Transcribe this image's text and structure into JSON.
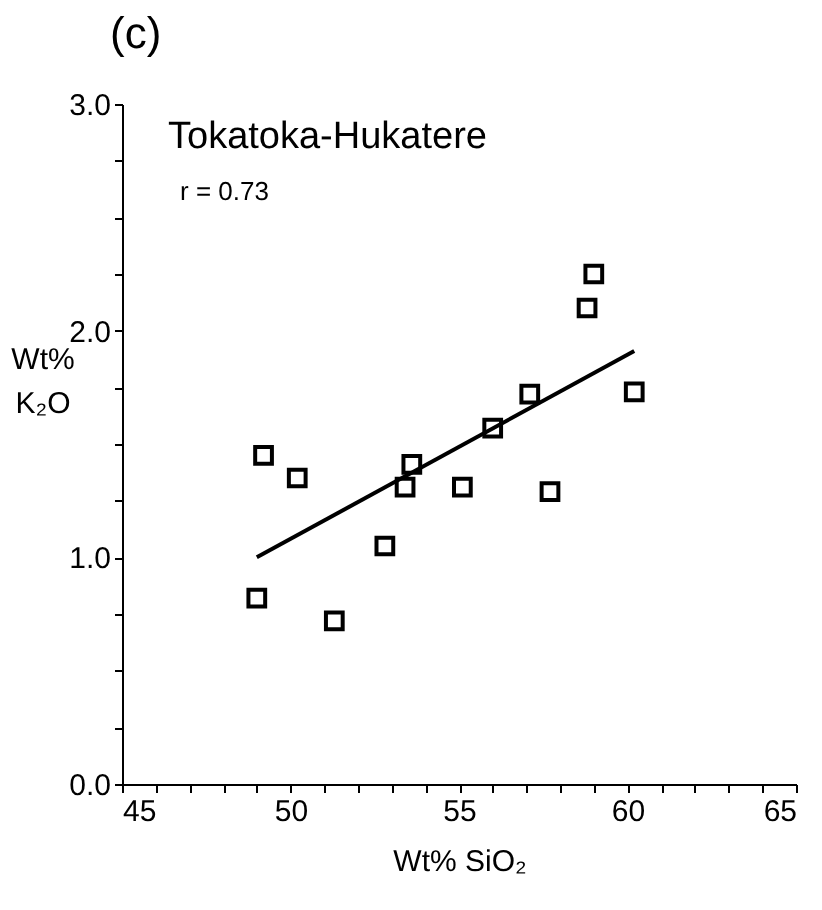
{
  "chart_data": {
    "type": "scatter",
    "title": "(c)",
    "xlabel": "Wt% SiO₂",
    "ylabel": "Wt% K₂O",
    "annotations": [
      "Tokatoka-Hukatere",
      "r = 0.73"
    ],
    "xlim": [
      45,
      65
    ],
    "ylim": [
      0,
      3
    ],
    "xticks": [
      45,
      {
        "value": 46,
        "label": null
      },
      {
        "value": 47,
        "label": null
      },
      {
        "value": 48,
        "label": null
      },
      {
        "value": 49,
        "label": null
      },
      50,
      {
        "value": 51,
        "label": null
      },
      {
        "value": 52,
        "label": null
      },
      {
        "value": 53,
        "label": null
      },
      {
        "value": 54,
        "label": null
      },
      55,
      {
        "value": 56,
        "label": null
      },
      {
        "value": 57,
        "label": null
      },
      {
        "value": 58,
        "label": null
      },
      {
        "value": 59,
        "label": null
      },
      60,
      {
        "value": 61,
        "label": null
      },
      {
        "value": 62,
        "label": null
      },
      {
        "value": 63,
        "label": null
      },
      {
        "value": 64,
        "label": null
      },
      65
    ],
    "yticks": [
      {
        "value": 0,
        "label": "0.0"
      },
      {
        "value": 0.25,
        "label": null
      },
      {
        "value": 0.5,
        "label": null
      },
      {
        "value": 0.75,
        "label": null
      },
      {
        "value": 1,
        "label": "1.0"
      },
      {
        "value": 1.25,
        "label": null
      },
      {
        "value": 1.5,
        "label": null
      },
      {
        "value": 1.75,
        "label": null
      },
      {
        "value": 2,
        "label": "2.0"
      },
      {
        "value": 2.25,
        "label": null
      },
      {
        "value": 2.5,
        "label": null
      },
      {
        "value": 2.75,
        "label": null
      },
      {
        "value": 3,
        "label": "3.0"
      }
    ],
    "grid": false,
    "marker": "square",
    "series": [
      {
        "type": "scatter",
        "color": "#000000",
        "x": [
          49.2,
          50.2,
          49.0,
          51.3,
          52.8,
          53.4,
          53.6,
          55.1,
          56.0,
          57.1,
          57.7,
          58.8,
          59.0,
          60.2
        ],
        "values": [
          1.45,
          1.35,
          0.82,
          0.72,
          1.05,
          1.31,
          1.41,
          1.31,
          1.57,
          1.72,
          1.29,
          2.1,
          2.25,
          1.73
        ]
      },
      {
        "type": "line",
        "color": "#000000",
        "line_style": "solid",
        "marker": "none",
        "x": [
          49.0,
          60.2
        ],
        "values": [
          1.0,
          1.91
        ]
      }
    ]
  }
}
